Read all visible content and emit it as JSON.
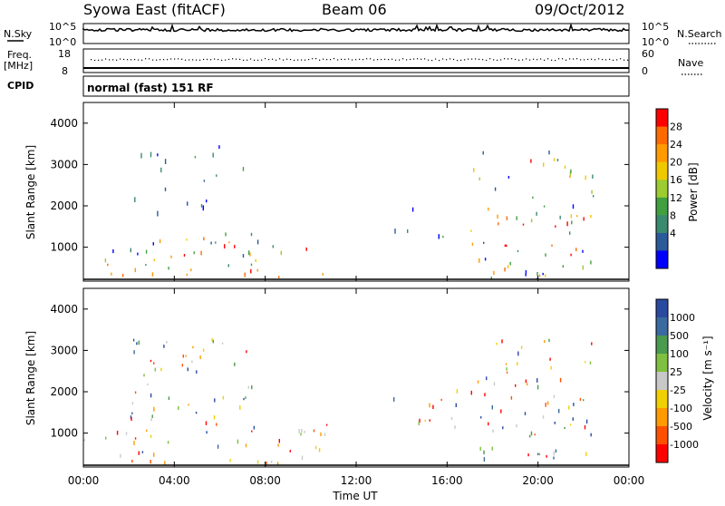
{
  "header": {
    "station": "Syowa East (fitACF)",
    "beam": "Beam 06",
    "date": "09/Oct/2012"
  },
  "top_panels": {
    "nsky_label": "N.Sky",
    "nsky_scale_top": "10^5",
    "nsky_scale_bottom": "10^0",
    "nsearch_label": "N.Search",
    "nsearch_scale_top": "10^5",
    "nsearch_scale_bottom": "10^0",
    "freq_label": "Freq.",
    "freq_unit": "[MHz]",
    "freq_ticks": [
      "18",
      "8"
    ],
    "nave_label": "Nave",
    "nave_ticks": [
      "60",
      "0"
    ],
    "cpid_label": "CPID",
    "cpid_text": "normal (fast) 151 RF"
  },
  "chart_data": [
    {
      "type": "heatmap",
      "name": "power-panel",
      "ylabel": "Slant Range [km]",
      "ylim": [
        180,
        4500
      ],
      "yticks": [
        "4000",
        "3000",
        "2000",
        "1000"
      ],
      "yticks_values": [
        4000,
        3000,
        2000,
        1000
      ],
      "xlim": [
        0,
        24
      ],
      "colorbar_label": "Power [dB]",
      "colorbar_ticks": [
        "28",
        "24",
        "20",
        "16",
        "12",
        "8",
        "4"
      ],
      "colorbar_colors": [
        "#ff0000",
        "#ff6a00",
        "#ff9a00",
        "#f0c800",
        "#9ccc30",
        "#40a040",
        "#3a8a70",
        "#2a5a9a",
        "#0000ff"
      ],
      "echo_regions": [
        {
          "t": [
            0.0,
            10.8
          ],
          "r": [
            200,
            450
          ],
          "level": "high"
        },
        {
          "t": [
            0.0,
            10.8
          ],
          "r": [
            450,
            1200
          ],
          "level": "mid"
        },
        {
          "t": [
            2.0,
            7.5
          ],
          "r": [
            1200,
            3400
          ],
          "level": "low"
        },
        {
          "t": [
            13.5,
            16.5
          ],
          "r": [
            1000,
            2000
          ],
          "level": "low"
        },
        {
          "t": [
            17.0,
            22.5
          ],
          "r": [
            200,
            3300
          ],
          "level": "mid"
        }
      ]
    },
    {
      "type": "heatmap",
      "name": "velocity-panel",
      "ylabel": "Slant Range [km]",
      "ylim": [
        180,
        4500
      ],
      "yticks": [
        "4000",
        "3000",
        "2000",
        "1000"
      ],
      "yticks_values": [
        4000,
        3000,
        2000,
        1000
      ],
      "xlim": [
        0,
        24
      ],
      "xlabel": "Time UT",
      "xticks": [
        "00:00",
        "04:00",
        "08:00",
        "12:00",
        "16:00",
        "20:00",
        "00:00"
      ],
      "xticks_values": [
        0,
        4,
        8,
        12,
        16,
        20,
        24
      ],
      "colorbar_label": "Velocity [m s⁻¹]",
      "colorbar_ticks": [
        "1000",
        "500",
        "100",
        "25",
        "-25",
        "-100",
        "-500",
        "-1000"
      ],
      "colorbar_colors": [
        "#2a4aa0",
        "#3a6aa0",
        "#4a9a50",
        "#80c040",
        "#c8c8c8",
        "#f0d000",
        "#ff9a00",
        "#ff5000",
        "#ff0000"
      ],
      "echo_regions": [
        {
          "t": [
            0.0,
            10.8
          ],
          "r": [
            200,
            450
          ],
          "level": "negative"
        },
        {
          "t": [
            0.0,
            10.8
          ],
          "r": [
            450,
            1200
          ],
          "level": "mixed"
        },
        {
          "t": [
            2.0,
            7.5
          ],
          "r": [
            1200,
            3400
          ],
          "level": "mixed"
        },
        {
          "t": [
            13.5,
            16.5
          ],
          "r": [
            1000,
            2000
          ],
          "level": "mixed"
        },
        {
          "t": [
            17.0,
            22.5
          ],
          "r": [
            200,
            3300
          ],
          "level": "mixed"
        }
      ]
    }
  ]
}
